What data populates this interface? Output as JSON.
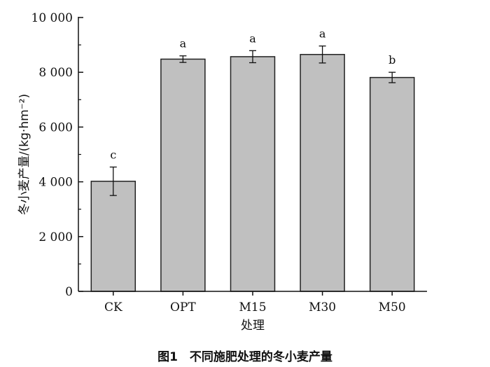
{
  "chart_data": {
    "type": "bar",
    "categories": [
      "CK",
      "OPT",
      "M15",
      "M30",
      "M50"
    ],
    "values": [
      4020,
      8480,
      8570,
      8650,
      7810
    ],
    "errors": [
      520,
      120,
      220,
      310,
      190
    ],
    "significance": [
      "c",
      "a",
      "a",
      "a",
      "b"
    ],
    "xlabel": "处理",
    "ylabel": "冬小麦产量/(kg·hm⁻²)",
    "ylim": [
      0,
      10000
    ],
    "yticks": [
      0,
      2000,
      4000,
      6000,
      8000,
      10000
    ],
    "ytick_labels": [
      "0",
      "2 000",
      "4 000",
      "6 000",
      "8 000",
      "10 000"
    ],
    "caption": "图1　不同施肥处理的冬小麦产量",
    "bar_color": "#c0c0c0",
    "edge_color": "#222222",
    "grid": false
  }
}
